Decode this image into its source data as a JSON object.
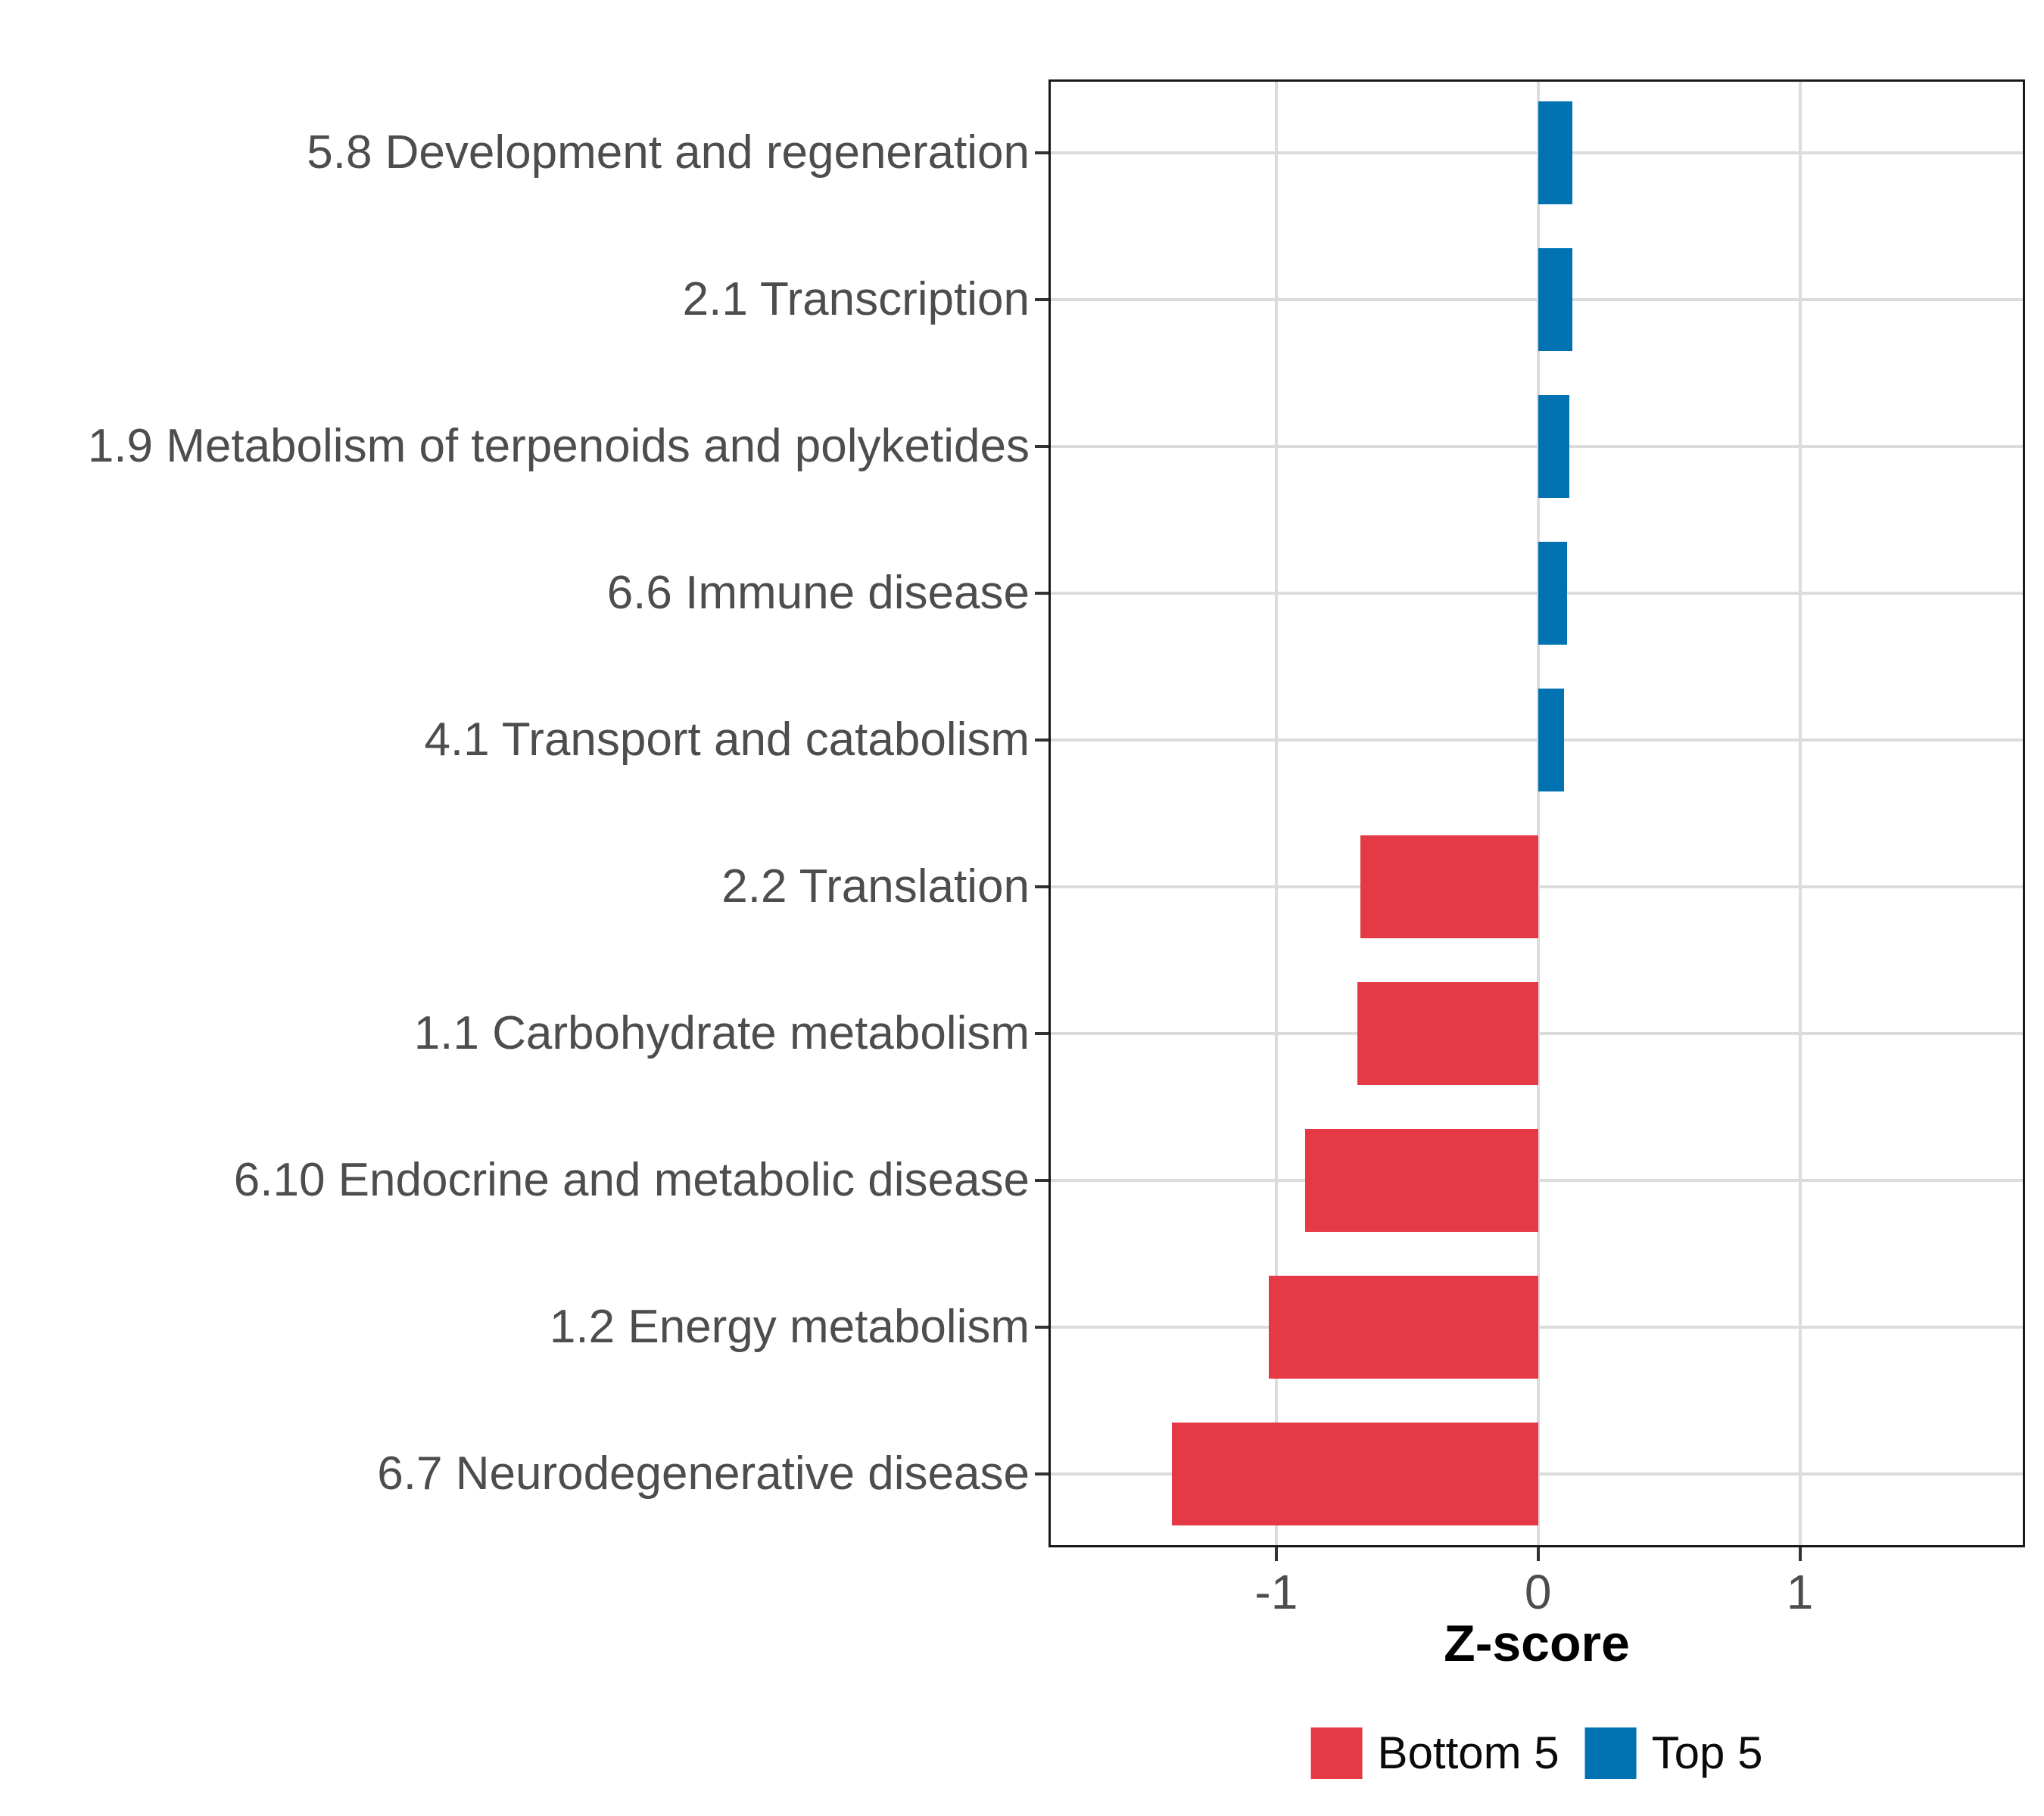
{
  "chart_data": {
    "type": "bar",
    "orientation": "horizontal",
    "title": "",
    "xlabel": "Z-score",
    "ylabel": "",
    "xlim": [
      -1.87,
      1.86
    ],
    "x_ticks": [
      -1,
      0,
      1
    ],
    "x_tick_labels": [
      "-1",
      "0",
      "1"
    ],
    "grid": "major-only",
    "legend_position": "bottom",
    "bar_relative_width": 0.7,
    "categories": [
      "5.8 Development and regeneration",
      "2.1 Transcription",
      "1.9 Metabolism of terpenoids and polyketides",
      "6.6 Immune disease",
      "4.1 Transport and catabolism",
      "2.2 Translation",
      "1.1 Carbohydrate metabolism",
      "6.10 Endocrine and metabolic disease",
      "1.2 Energy metabolism",
      "6.7 Neurodegenerative disease"
    ],
    "values": [
      0.13,
      0.13,
      0.12,
      0.11,
      0.1,
      -0.68,
      -0.69,
      -0.89,
      -1.03,
      -1.4
    ],
    "groups": [
      "Top 5",
      "Top 5",
      "Top 5",
      "Top 5",
      "Top 5",
      "Bottom 5",
      "Bottom 5",
      "Bottom 5",
      "Bottom 5",
      "Bottom 5"
    ],
    "legend": [
      {
        "label": "Bottom 5",
        "color": "#E63946"
      },
      {
        "label": "Top 5",
        "color": "#0072B2"
      }
    ],
    "colors": {
      "Bottom 5": "#E63946",
      "Top 5": "#0072B2"
    },
    "gridline_color": "#dcdcdc",
    "axis_text_color": "#4d4d4d",
    "panel_border_color": "#1a1a1a"
  }
}
